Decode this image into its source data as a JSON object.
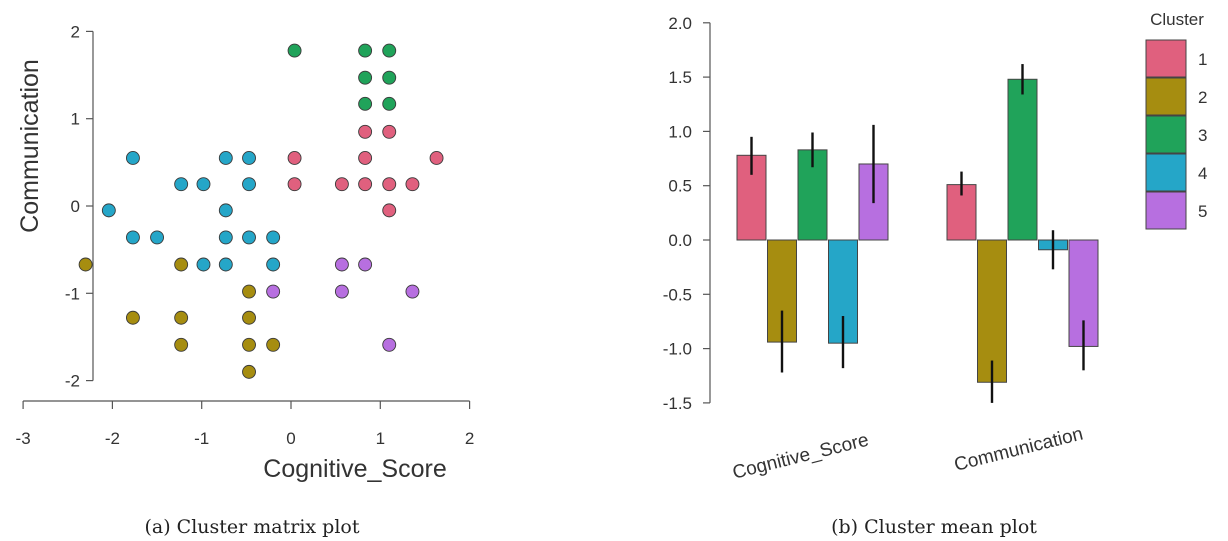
{
  "colors": {
    "cluster_1": "#e0607e",
    "cluster_2": "#a68d10",
    "cluster_3": "#20a35a",
    "cluster_4": "#25a6c8",
    "cluster_5": "#b76fe0",
    "axis": "#555555",
    "text": "#333333"
  },
  "captions": {
    "a": "(a) Cluster matrix plot",
    "b": "(b) Cluster mean plot"
  },
  "chart_data": [
    {
      "type": "scatter",
      "xlabel": "Cognitive_Score",
      "ylabel": "Communication",
      "xlim": [
        -3,
        2
      ],
      "ylim": [
        -2,
        2
      ],
      "xticks": [
        "-3",
        "-2",
        "-1",
        "0",
        "1",
        "2"
      ],
      "yticks": [
        "2",
        "1",
        "0",
        "-1",
        "-2"
      ],
      "grid": false,
      "series": [
        {
          "cluster": "1",
          "points": [
            [
              0.04,
              0.55
            ],
            [
              0.04,
              0.25
            ],
            [
              0.83,
              0.85
            ],
            [
              1.1,
              0.85
            ],
            [
              0.83,
              0.55
            ],
            [
              1.63,
              0.55
            ],
            [
              0.57,
              0.25
            ],
            [
              0.83,
              0.25
            ],
            [
              1.1,
              0.25
            ],
            [
              1.36,
              0.25
            ],
            [
              1.1,
              -0.05
            ]
          ]
        },
        {
          "cluster": "2",
          "points": [
            [
              -2.3,
              -0.67
            ],
            [
              -1.23,
              -0.67
            ],
            [
              -1.77,
              -1.28
            ],
            [
              -1.23,
              -1.28
            ],
            [
              -1.23,
              -1.59
            ],
            [
              -0.47,
              -0.98
            ],
            [
              -0.47,
              -1.28
            ],
            [
              -0.47,
              -1.59
            ],
            [
              -0.2,
              -1.59
            ],
            [
              -0.47,
              -1.9
            ]
          ]
        },
        {
          "cluster": "3",
          "points": [
            [
              0.04,
              1.78
            ],
            [
              0.83,
              1.78
            ],
            [
              1.1,
              1.78
            ],
            [
              0.83,
              1.47
            ],
            [
              1.1,
              1.47
            ],
            [
              0.83,
              1.17
            ],
            [
              1.1,
              1.17
            ]
          ]
        },
        {
          "cluster": "4",
          "points": [
            [
              -1.77,
              0.55
            ],
            [
              -0.73,
              0.55
            ],
            [
              -0.47,
              0.55
            ],
            [
              -1.23,
              0.25
            ],
            [
              -0.98,
              0.25
            ],
            [
              -0.47,
              0.25
            ],
            [
              -2.04,
              -0.05
            ],
            [
              -0.73,
              -0.05
            ],
            [
              -1.77,
              -0.36
            ],
            [
              -1.5,
              -0.36
            ],
            [
              -0.73,
              -0.36
            ],
            [
              -0.47,
              -0.36
            ],
            [
              -0.2,
              -0.36
            ],
            [
              -0.98,
              -0.67
            ],
            [
              -0.73,
              -0.67
            ],
            [
              -0.2,
              -0.67
            ]
          ]
        },
        {
          "cluster": "5",
          "points": [
            [
              -0.2,
              -0.98
            ],
            [
              0.57,
              -0.67
            ],
            [
              0.83,
              -0.67
            ],
            [
              0.57,
              -0.98
            ],
            [
              1.36,
              -0.98
            ],
            [
              1.1,
              -1.59
            ]
          ]
        }
      ]
    },
    {
      "type": "bar",
      "categories": [
        "Cognitive_Score",
        "Communication"
      ],
      "ylim": [
        -1.5,
        2.0
      ],
      "yticks": [
        "2.0",
        "1.5",
        "1.0",
        "0.5",
        "0.0",
        "-0.5",
        "-1.0",
        "-1.5"
      ],
      "legend_title": "Cluster",
      "legend_position": "top-right",
      "grid": false,
      "series": [
        {
          "name": "1",
          "values": [
            0.78,
            0.51
          ],
          "err_low": [
            0.6,
            0.41
          ],
          "err_high": [
            0.95,
            0.63
          ]
        },
        {
          "name": "2",
          "values": [
            -0.94,
            -1.31
          ],
          "err_low": [
            -1.22,
            -1.5
          ],
          "err_high": [
            -0.65,
            -1.11
          ]
        },
        {
          "name": "3",
          "values": [
            0.83,
            1.48
          ],
          "err_low": [
            0.67,
            1.34
          ],
          "err_high": [
            0.99,
            1.62
          ]
        },
        {
          "name": "4",
          "values": [
            -0.95,
            -0.09
          ],
          "err_low": [
            -1.18,
            -0.27
          ],
          "err_high": [
            -0.7,
            0.09
          ]
        },
        {
          "name": "5",
          "values": [
            0.7,
            -0.98
          ],
          "err_low": [
            0.34,
            -1.2
          ],
          "err_high": [
            1.06,
            -0.74
          ]
        }
      ]
    }
  ]
}
